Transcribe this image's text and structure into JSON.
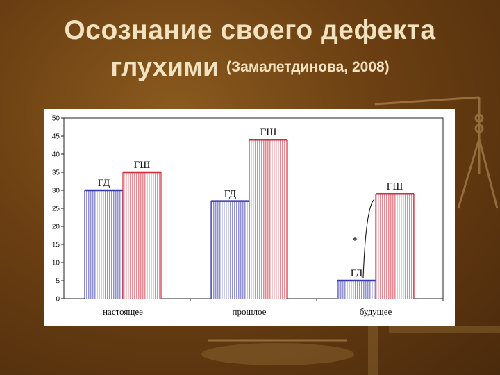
{
  "title": {
    "line1": "Осознание своего дефекта",
    "line2": "глухими",
    "citation": "(Замалетдинова, 2008)"
  },
  "chart_data": {
    "type": "bar",
    "categories": [
      "настоящее",
      "прошлое",
      "будущее"
    ],
    "series": [
      {
        "name": "ГД",
        "values": [
          30,
          27,
          5
        ],
        "color": "#3a3ab0"
      },
      {
        "name": "ГШ",
        "values": [
          35,
          44,
          29
        ],
        "color": "#d42a3a"
      }
    ],
    "bar_labels": [
      "ГД",
      "ГШ"
    ],
    "ylim": [
      0,
      50
    ],
    "yticks": [
      0,
      5,
      10,
      15,
      20,
      25,
      30,
      35,
      40,
      45,
      50
    ],
    "significance": {
      "category": "будущее",
      "marker": "*"
    },
    "grid": false,
    "legend": "none"
  }
}
